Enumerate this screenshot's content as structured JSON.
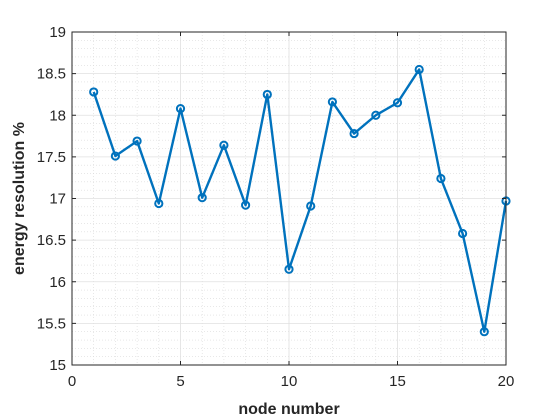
{
  "chart_data": {
    "type": "line",
    "title": "",
    "xlabel": "node number",
    "ylabel": "energy resolution %",
    "xlim": [
      0,
      20
    ],
    "ylim": [
      15,
      19
    ],
    "xticks": [
      0,
      5,
      10,
      15,
      20
    ],
    "xtick_labels": [
      "0",
      "5",
      "10",
      "15",
      "20"
    ],
    "yticks": [
      15,
      15.5,
      16,
      16.5,
      17,
      17.5,
      18,
      18.5,
      19
    ],
    "ytick_labels": [
      "15",
      "15.5",
      "16",
      "16.5",
      "17",
      "17.5",
      "18",
      "18.5",
      "19"
    ],
    "grid": "major and minor",
    "legend": "none",
    "colors": {
      "series": "#0072BD",
      "grid": "#d9d9d9",
      "axis": "#262626"
    },
    "x": [
      1,
      2,
      3,
      4,
      5,
      6,
      7,
      8,
      9,
      10,
      11,
      12,
      13,
      14,
      15,
      16,
      17,
      18,
      19,
      20
    ],
    "series": [
      {
        "marker": "circle",
        "values": [
          18.28,
          17.51,
          17.69,
          16.94,
          18.08,
          17.01,
          17.64,
          16.92,
          18.25,
          16.15,
          16.91,
          18.16,
          17.78,
          18.0,
          18.15,
          18.55,
          17.24,
          16.58,
          15.4,
          16.97
        ]
      }
    ]
  }
}
